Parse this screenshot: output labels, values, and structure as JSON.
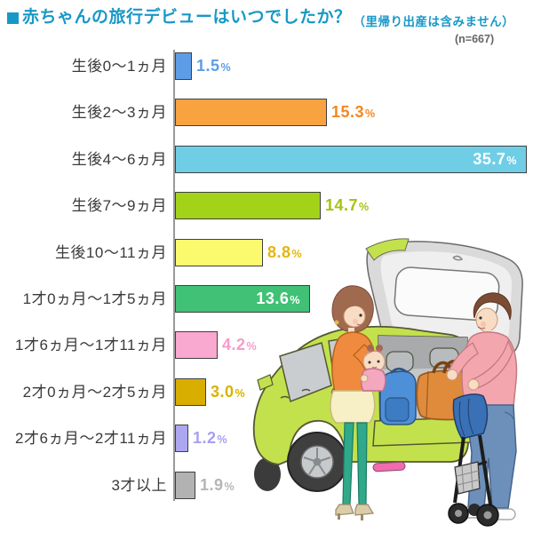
{
  "header": {
    "title": "赤ちゃんの旅行デビューはいつでしたか？",
    "note": "（里帰り出産は含みません）",
    "sample": "(n=667)",
    "accent_color": "#1898C8"
  },
  "chart_data": {
    "type": "bar",
    "orientation": "horizontal",
    "title": "赤ちゃんの旅行デビューはいつでしたか？（里帰り出産は含みません）",
    "sample_size": "n=667",
    "unit": "%",
    "xlim": [
      0,
      36
    ],
    "grid": false,
    "categories": [
      "生後0〜1ヵ月",
      "生後2〜3ヵ月",
      "生後4〜6ヵ月",
      "生後7〜9ヵ月",
      "生後10〜11ヵ月",
      "1才0ヵ月〜1才5ヵ月",
      "1才6ヵ月〜1才11ヵ月",
      "2才0ヵ月〜2才5ヵ月",
      "2才6ヵ月〜2才11ヵ月",
      "3才以上"
    ],
    "values": [
      1.5,
      15.3,
      35.7,
      14.7,
      8.8,
      13.6,
      4.2,
      3.0,
      1.2,
      1.9
    ],
    "value_labels": [
      "1.5%",
      "15.3%",
      "35.7%",
      "14.7%",
      "8.8%",
      "13.6%",
      "4.2%",
      "3.0%",
      "1.2%",
      "1.9%"
    ],
    "bar_colors": [
      "#5D9DE8",
      "#F9A240",
      "#6FCEE6",
      "#A3D318",
      "#FBFA6E",
      "#40C175",
      "#F9A8CF",
      "#D8AE00",
      "#ADA7F2",
      "#B2B2B2"
    ],
    "value_colors": [
      "#5C9DE8",
      "#F6871F",
      "#FFFFFF",
      "#A2C414",
      "#E4B511",
      "#FFFFFF",
      "#F79BC8",
      "#D9B200",
      "#A7A0EF",
      "#B5B5B5"
    ],
    "value_inside": [
      false,
      false,
      true,
      false,
      false,
      true,
      false,
      false,
      false,
      false
    ],
    "legend": null
  },
  "illustration": {
    "alt": "家族（母親と赤ちゃん、父親）が黄緑色の車の開いたトランクに荷物とベビーカーを積み込むイラスト",
    "colors": {
      "car_body": "#C3E14D",
      "hatch_door": "#DADADA",
      "mother_top": "#F08A3E",
      "mother_pants": "#2FA98A",
      "father_shirt": "#F4A6AE",
      "father_jeans": "#6C90BA",
      "baby_outfit": "#F4A8C0",
      "duffel_bag": "#E08A3C",
      "backpack": "#4E90D8",
      "stroller_canopy": "#3A70B6"
    }
  }
}
